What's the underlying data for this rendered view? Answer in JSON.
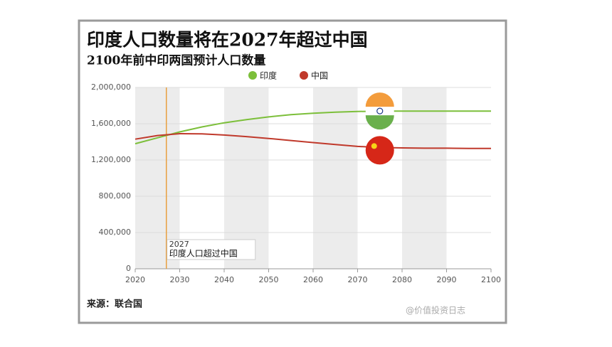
{
  "chart_data": {
    "type": "line",
    "title": "印度人口数量将在2027年超过中国",
    "subtitle": "2100年前中印两国预计人口数量",
    "x": [
      2020,
      2025,
      2030,
      2035,
      2040,
      2045,
      2050,
      2055,
      2060,
      2065,
      2070,
      2075,
      2080,
      2085,
      2090,
      2095,
      2100
    ],
    "series": [
      {
        "name": "印度",
        "color": "#7cbf3a",
        "values": [
          1380000,
          1445000,
          1510000,
          1565000,
          1610000,
          1645000,
          1675000,
          1700000,
          1715000,
          1728000,
          1735000,
          1740000,
          1740000,
          1740000,
          1740000,
          1740000,
          1740000
        ]
      },
      {
        "name": "中国",
        "color": "#c0392b",
        "values": [
          1430000,
          1470000,
          1490000,
          1488000,
          1475000,
          1458000,
          1438000,
          1415000,
          1392000,
          1370000,
          1350000,
          1338000,
          1333000,
          1330000,
          1330000,
          1328000,
          1328000
        ]
      }
    ],
    "xlim": [
      2020,
      2100
    ],
    "xticks": [
      2020,
      2030,
      2040,
      2050,
      2060,
      2070,
      2080,
      2090,
      2100
    ],
    "ylim": [
      0,
      2000000
    ],
    "yticks": [
      0,
      {
        "value": 400000,
        "label": "400,000"
      },
      {
        "value": 800000,
        "label": "800,000"
      },
      {
        "value": 1200000,
        "label": "1,200,000"
      },
      {
        "value": 1600000,
        "label": "1,600,000"
      },
      {
        "value": 2000000,
        "label": "2,000,000"
      }
    ],
    "grid": true,
    "annotation": {
      "x": 2027,
      "year": "2027",
      "text": "印度人口超过中国"
    },
    "source": "来源：联合国",
    "watermark": "@价值投资日志"
  }
}
